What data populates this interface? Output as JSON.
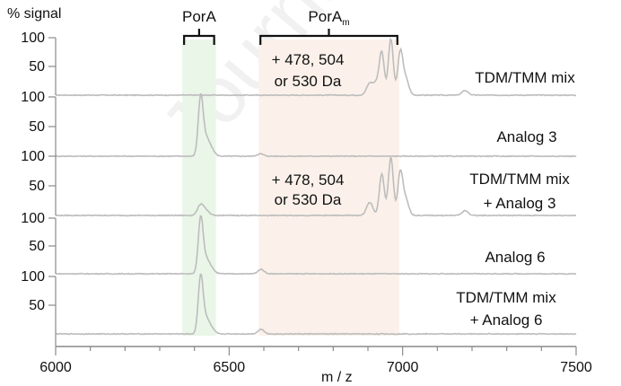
{
  "chart_data": {
    "type": "line",
    "y_axis_title": "% signal",
    "x_axis_title": "m / z",
    "x_range": [
      6000,
      7500
    ],
    "x_ticks": [
      6000,
      6500,
      7000,
      7500
    ],
    "x_tick_labels": [
      "6000",
      "6500",
      "7000",
      "7500"
    ],
    "y_tick_labels": [
      "100",
      "50"
    ],
    "y_range_per_trace": [
      0,
      100
    ],
    "regions": [
      {
        "label": "PorA",
        "x_range": [
          6365,
          6462
        ],
        "color": "#eaf6e8"
      },
      {
        "label": "PorA",
        "label_sub": "m",
        "x_range": [
          6585,
          6990
        ],
        "color": "#fbf1ea"
      }
    ],
    "traces": [
      {
        "name": "TDM/TMM mix",
        "name_line2": "",
        "annotation": [
          "+ 478, 504",
          "or 530 Da"
        ],
        "peaks": [
          [
            6905,
            20
          ],
          [
            6940,
            72
          ],
          [
            6966,
            98
          ],
          [
            6993,
            72
          ],
          [
            7008,
            30
          ],
          [
            6925,
            20
          ],
          [
            7180,
            8
          ]
        ]
      },
      {
        "name": "Analog 3",
        "name_line2": "",
        "peaks": [
          [
            6418,
            100
          ],
          [
            6434,
            28
          ],
          [
            6450,
            10
          ],
          [
            6590,
            4
          ]
        ]
      },
      {
        "name": "TDM/TMM mix",
        "name_line2": "+ Analog 3",
        "annotation": [
          "+ 478, 504",
          "or 530 Da"
        ],
        "peaks": [
          [
            6418,
            18
          ],
          [
            6434,
            7
          ],
          [
            6905,
            22
          ],
          [
            6940,
            70
          ],
          [
            6966,
            98
          ],
          [
            6993,
            70
          ],
          [
            7008,
            28
          ],
          [
            7180,
            8
          ]
        ]
      },
      {
        "name": "Analog 6",
        "name_line2": "",
        "peaks": [
          [
            6418,
            100
          ],
          [
            6434,
            25
          ],
          [
            6450,
            8
          ],
          [
            6592,
            8
          ]
        ]
      },
      {
        "name": "TDM/TMM mix",
        "name_line2": "+ Analog 6",
        "peaks": [
          [
            6418,
            100
          ],
          [
            6434,
            25
          ],
          [
            6450,
            8
          ],
          [
            6592,
            8
          ]
        ]
      }
    ]
  },
  "watermark": "Journal"
}
